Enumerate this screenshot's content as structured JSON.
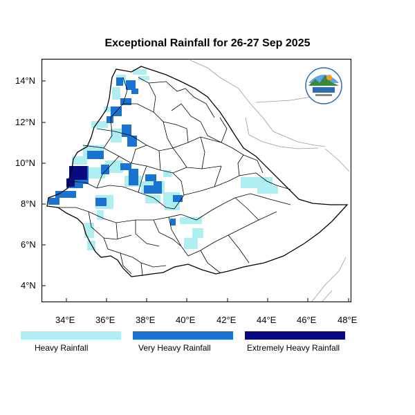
{
  "title": "Exceptional Rainfall for 26-27 Sep 2025",
  "axes": {
    "x_ticks": [
      "34°E",
      "36°E",
      "38°E",
      "40°E",
      "42°E",
      "44°E",
      "46°E",
      "48°E"
    ],
    "y_ticks": [
      "14°N",
      "12°N",
      "10°N",
      "8°N",
      "6°N",
      "4°N"
    ]
  },
  "legend": [
    {
      "label": "Heavy Rainfall",
      "color": "#aeeef0"
    },
    {
      "label": "Very Heavy Rainfall",
      "color": "#1a73d0"
    },
    {
      "label": "Extremely Heavy Rainfall",
      "color": "#0a0a80"
    }
  ],
  "colors": {
    "heavy": "#aeeef0",
    "very_heavy": "#1a73d0",
    "extreme": "#0a0a80",
    "boundary": "#000000",
    "neighbor_border": "#9a9a9a"
  },
  "logo": {
    "icon": "ethiopian-meteorology-institute-logo"
  }
}
